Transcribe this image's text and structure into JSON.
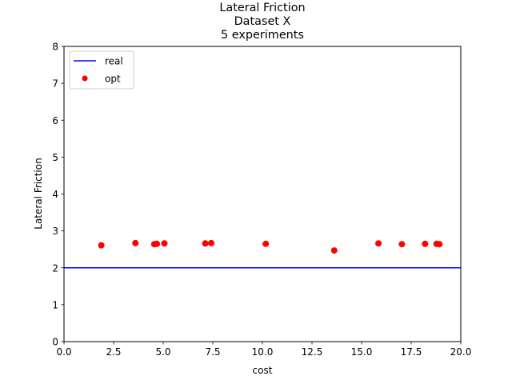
{
  "chart_data": {
    "type": "scatter",
    "title_lines": [
      "Lateral Friction",
      "Dataset X",
      "5 experiments"
    ],
    "xlabel": "cost",
    "ylabel": "Lateral Friction",
    "xlim": [
      0,
      20
    ],
    "ylim": [
      0,
      8
    ],
    "x_ticks": [
      "0.0",
      "2.5",
      "5.0",
      "7.5",
      "10.0",
      "12.5",
      "15.0",
      "17.5",
      "20.0"
    ],
    "y_ticks": [
      "0",
      "1",
      "2",
      "3",
      "4",
      "5",
      "6",
      "7",
      "8"
    ],
    "x_tick_values": [
      0,
      2.5,
      5,
      7.5,
      10,
      12.5,
      15,
      17.5,
      20
    ],
    "y_tick_values": [
      0,
      1,
      2,
      3,
      4,
      5,
      6,
      7,
      8
    ],
    "grid": false,
    "legend_position": "top-left",
    "series": [
      {
        "name": "real",
        "kind": "hline",
        "y": 2.0,
        "color": "#0000ff"
      },
      {
        "name": "opt",
        "kind": "scatter",
        "color": "#ff0000",
        "points": [
          {
            "x": 1.88,
            "y": 2.61
          },
          {
            "x": 3.6,
            "y": 2.67
          },
          {
            "x": 4.55,
            "y": 2.64
          },
          {
            "x": 4.68,
            "y": 2.65
          },
          {
            "x": 5.06,
            "y": 2.66
          },
          {
            "x": 7.12,
            "y": 2.66
          },
          {
            "x": 7.42,
            "y": 2.67
          },
          {
            "x": 10.17,
            "y": 2.65
          },
          {
            "x": 13.62,
            "y": 2.47
          },
          {
            "x": 15.85,
            "y": 2.66
          },
          {
            "x": 17.03,
            "y": 2.64
          },
          {
            "x": 18.2,
            "y": 2.65
          },
          {
            "x": 18.78,
            "y": 2.65
          },
          {
            "x": 18.92,
            "y": 2.64
          }
        ]
      }
    ]
  }
}
